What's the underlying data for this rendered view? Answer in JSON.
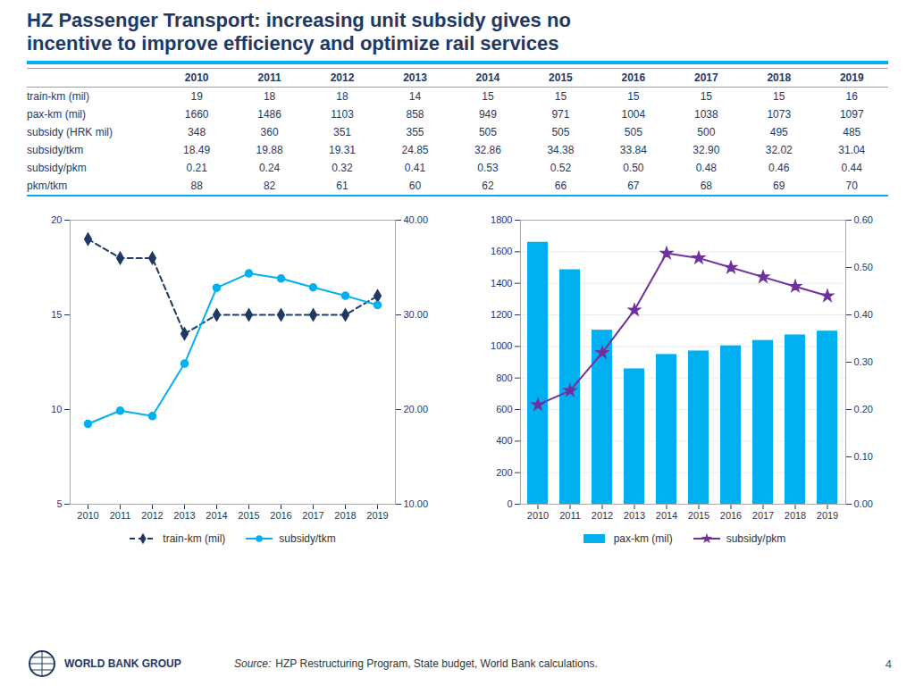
{
  "chart_data": [
    {
      "type": "table",
      "title": "HZ Passenger Transport: increasing unit subsidy gives no\nincentive to improve efficiency and optimize rail services",
      "categories": [
        "2010",
        "2011",
        "2012",
        "2013",
        "2014",
        "2015",
        "2016",
        "2017",
        "2018",
        "2019"
      ],
      "series": [
        {
          "name": "train-km (mil)",
          "values": [
            19,
            18,
            18,
            14,
            15,
            15,
            15,
            15,
            15,
            16
          ]
        },
        {
          "name": "pax-km (mil)",
          "values": [
            1660,
            1486,
            1103,
            858,
            949,
            971,
            1004,
            1038,
            1073,
            1097
          ]
        },
        {
          "name": "subsidy (HRK mil)",
          "values": [
            348,
            360,
            351,
            355,
            505,
            505,
            505,
            500,
            495,
            485
          ]
        },
        {
          "name": "subsidy/tkm",
          "values": [
            18.49,
            19.88,
            19.31,
            24.85,
            32.86,
            34.38,
            33.84,
            32.9,
            32.02,
            31.04
          ],
          "value_labels": [
            "18.49",
            "19.88",
            "19.31",
            "24.85",
            "32.86",
            "34.38",
            "33.84",
            "32.90",
            "32.02",
            "31.04"
          ]
        },
        {
          "name": "subsidy/pkm",
          "values": [
            0.21,
            0.24,
            0.32,
            0.41,
            0.53,
            0.52,
            0.5,
            0.48,
            0.46,
            0.44
          ],
          "value_labels": [
            "0.21",
            "0.24",
            "0.32",
            "0.41",
            "0.53",
            "0.52",
            "0.50",
            "0.48",
            "0.46",
            "0.44"
          ]
        },
        {
          "name": "pkm/tkm",
          "values": [
            88,
            82,
            61,
            60,
            62,
            66,
            67,
            68,
            69,
            70
          ]
        }
      ],
      "annotations": [
        "WORLD BANK GROUP",
        "Source:",
        "HZP Restructuring Program, State budget, World Bank calculations.",
        "4"
      ]
    },
    {
      "type": "line",
      "categories": [
        "2010",
        "2011",
        "2012",
        "2013",
        "2014",
        "2015",
        "2016",
        "2017",
        "2018",
        "2019"
      ],
      "series": [
        {
          "name": "train-km (mil)",
          "color": "#1F3864",
          "line_style": "dashed",
          "marker": "diamond",
          "values": [
            19,
            18,
            18,
            14,
            15,
            15,
            15,
            15,
            15,
            16
          ]
        },
        {
          "name": "subsidy/tkm",
          "color": "#00B0F0",
          "line_style": "solid",
          "marker": "circle",
          "axis": "y2",
          "values": [
            18.49,
            19.88,
            19.31,
            24.85,
            32.86,
            34.38,
            33.84,
            32.9,
            32.02,
            31.04
          ]
        }
      ],
      "ylim": [
        5,
        20
      ],
      "yticks": [
        5,
        10,
        15,
        20
      ],
      "y2lim": [
        10,
        40
      ],
      "y2ticks": [
        {
          "value": 10,
          "label": "10.00"
        },
        {
          "value": 20,
          "label": "20.00"
        },
        {
          "value": 30,
          "label": "30.00"
        },
        {
          "value": 40,
          "label": "40.00"
        }
      ],
      "grid": false,
      "legend": "bottom"
    },
    {
      "type": "bar",
      "categories": [
        "2010",
        "2011",
        "2012",
        "2013",
        "2014",
        "2015",
        "2016",
        "2017",
        "2018",
        "2019"
      ],
      "series": [
        {
          "name": "pax-km (mil)",
          "type": "bar",
          "color": "#00B0F0",
          "values": [
            1660,
            1486,
            1103,
            858,
            949,
            971,
            1004,
            1038,
            1073,
            1097
          ]
        },
        {
          "name": "subsidy/pkm",
          "type": "line",
          "color": "#7030A0",
          "line_style": "solid",
          "marker": "star",
          "axis": "y2",
          "values": [
            0.21,
            0.24,
            0.32,
            0.41,
            0.53,
            0.52,
            0.5,
            0.48,
            0.46,
            0.44
          ]
        }
      ],
      "ylim": [
        0,
        1800
      ],
      "yticks": [
        0,
        200,
        400,
        600,
        800,
        1000,
        1200,
        1400,
        1600,
        1800
      ],
      "y2lim": [
        0,
        0.6
      ],
      "y2ticks": [
        {
          "value": 0,
          "label": "0.00"
        },
        {
          "value": 0.1,
          "label": "0.10"
        },
        {
          "value": 0.2,
          "label": "0.20"
        },
        {
          "value": 0.3,
          "label": "0.30"
        },
        {
          "value": 0.4,
          "label": "0.40"
        },
        {
          "value": 0.5,
          "label": "0.50"
        },
        {
          "value": 0.6,
          "label": "0.60"
        }
      ],
      "grid": true,
      "legend": "bottom"
    }
  ]
}
